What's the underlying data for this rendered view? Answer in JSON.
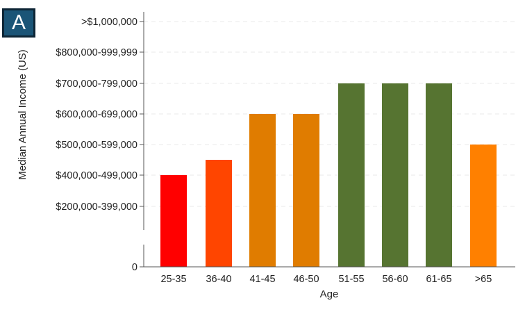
{
  "panel_label": "A",
  "chart_data": {
    "type": "bar",
    "title": "",
    "xlabel": "Age",
    "ylabel": "Median Annual Income (US)",
    "categories": [
      "25-35",
      "36-40",
      "41-45",
      "46-50",
      "51-55",
      "56-60",
      "61-65",
      ">65"
    ],
    "values": [
      400000,
      450000,
      600000,
      600000,
      700000,
      700000,
      700000,
      500000
    ],
    "colors": [
      "#ff0000",
      "#ff4500",
      "#e07c00",
      "#e07c00",
      "#567431",
      "#567431",
      "#567431",
      "#ff8000"
    ],
    "y_ticks": [
      {
        "value": 0,
        "label": "0"
      },
      {
        "value": 200000,
        "label": "$200,000-399,000"
      },
      {
        "value": 400000,
        "label": "$400,000-499,000"
      },
      {
        "value": 500000,
        "label": "$500,000-599,000"
      },
      {
        "value": 600000,
        "label": "$600,000-699,000"
      },
      {
        "value": 700000,
        "label": "$700,000-799,000"
      },
      {
        "value": 800000,
        "label": "$800,000-999,999"
      },
      {
        "value": 1000000,
        "label": ">$1,000,000"
      }
    ],
    "y_axis_break": true,
    "grid": true,
    "legend": "none"
  }
}
